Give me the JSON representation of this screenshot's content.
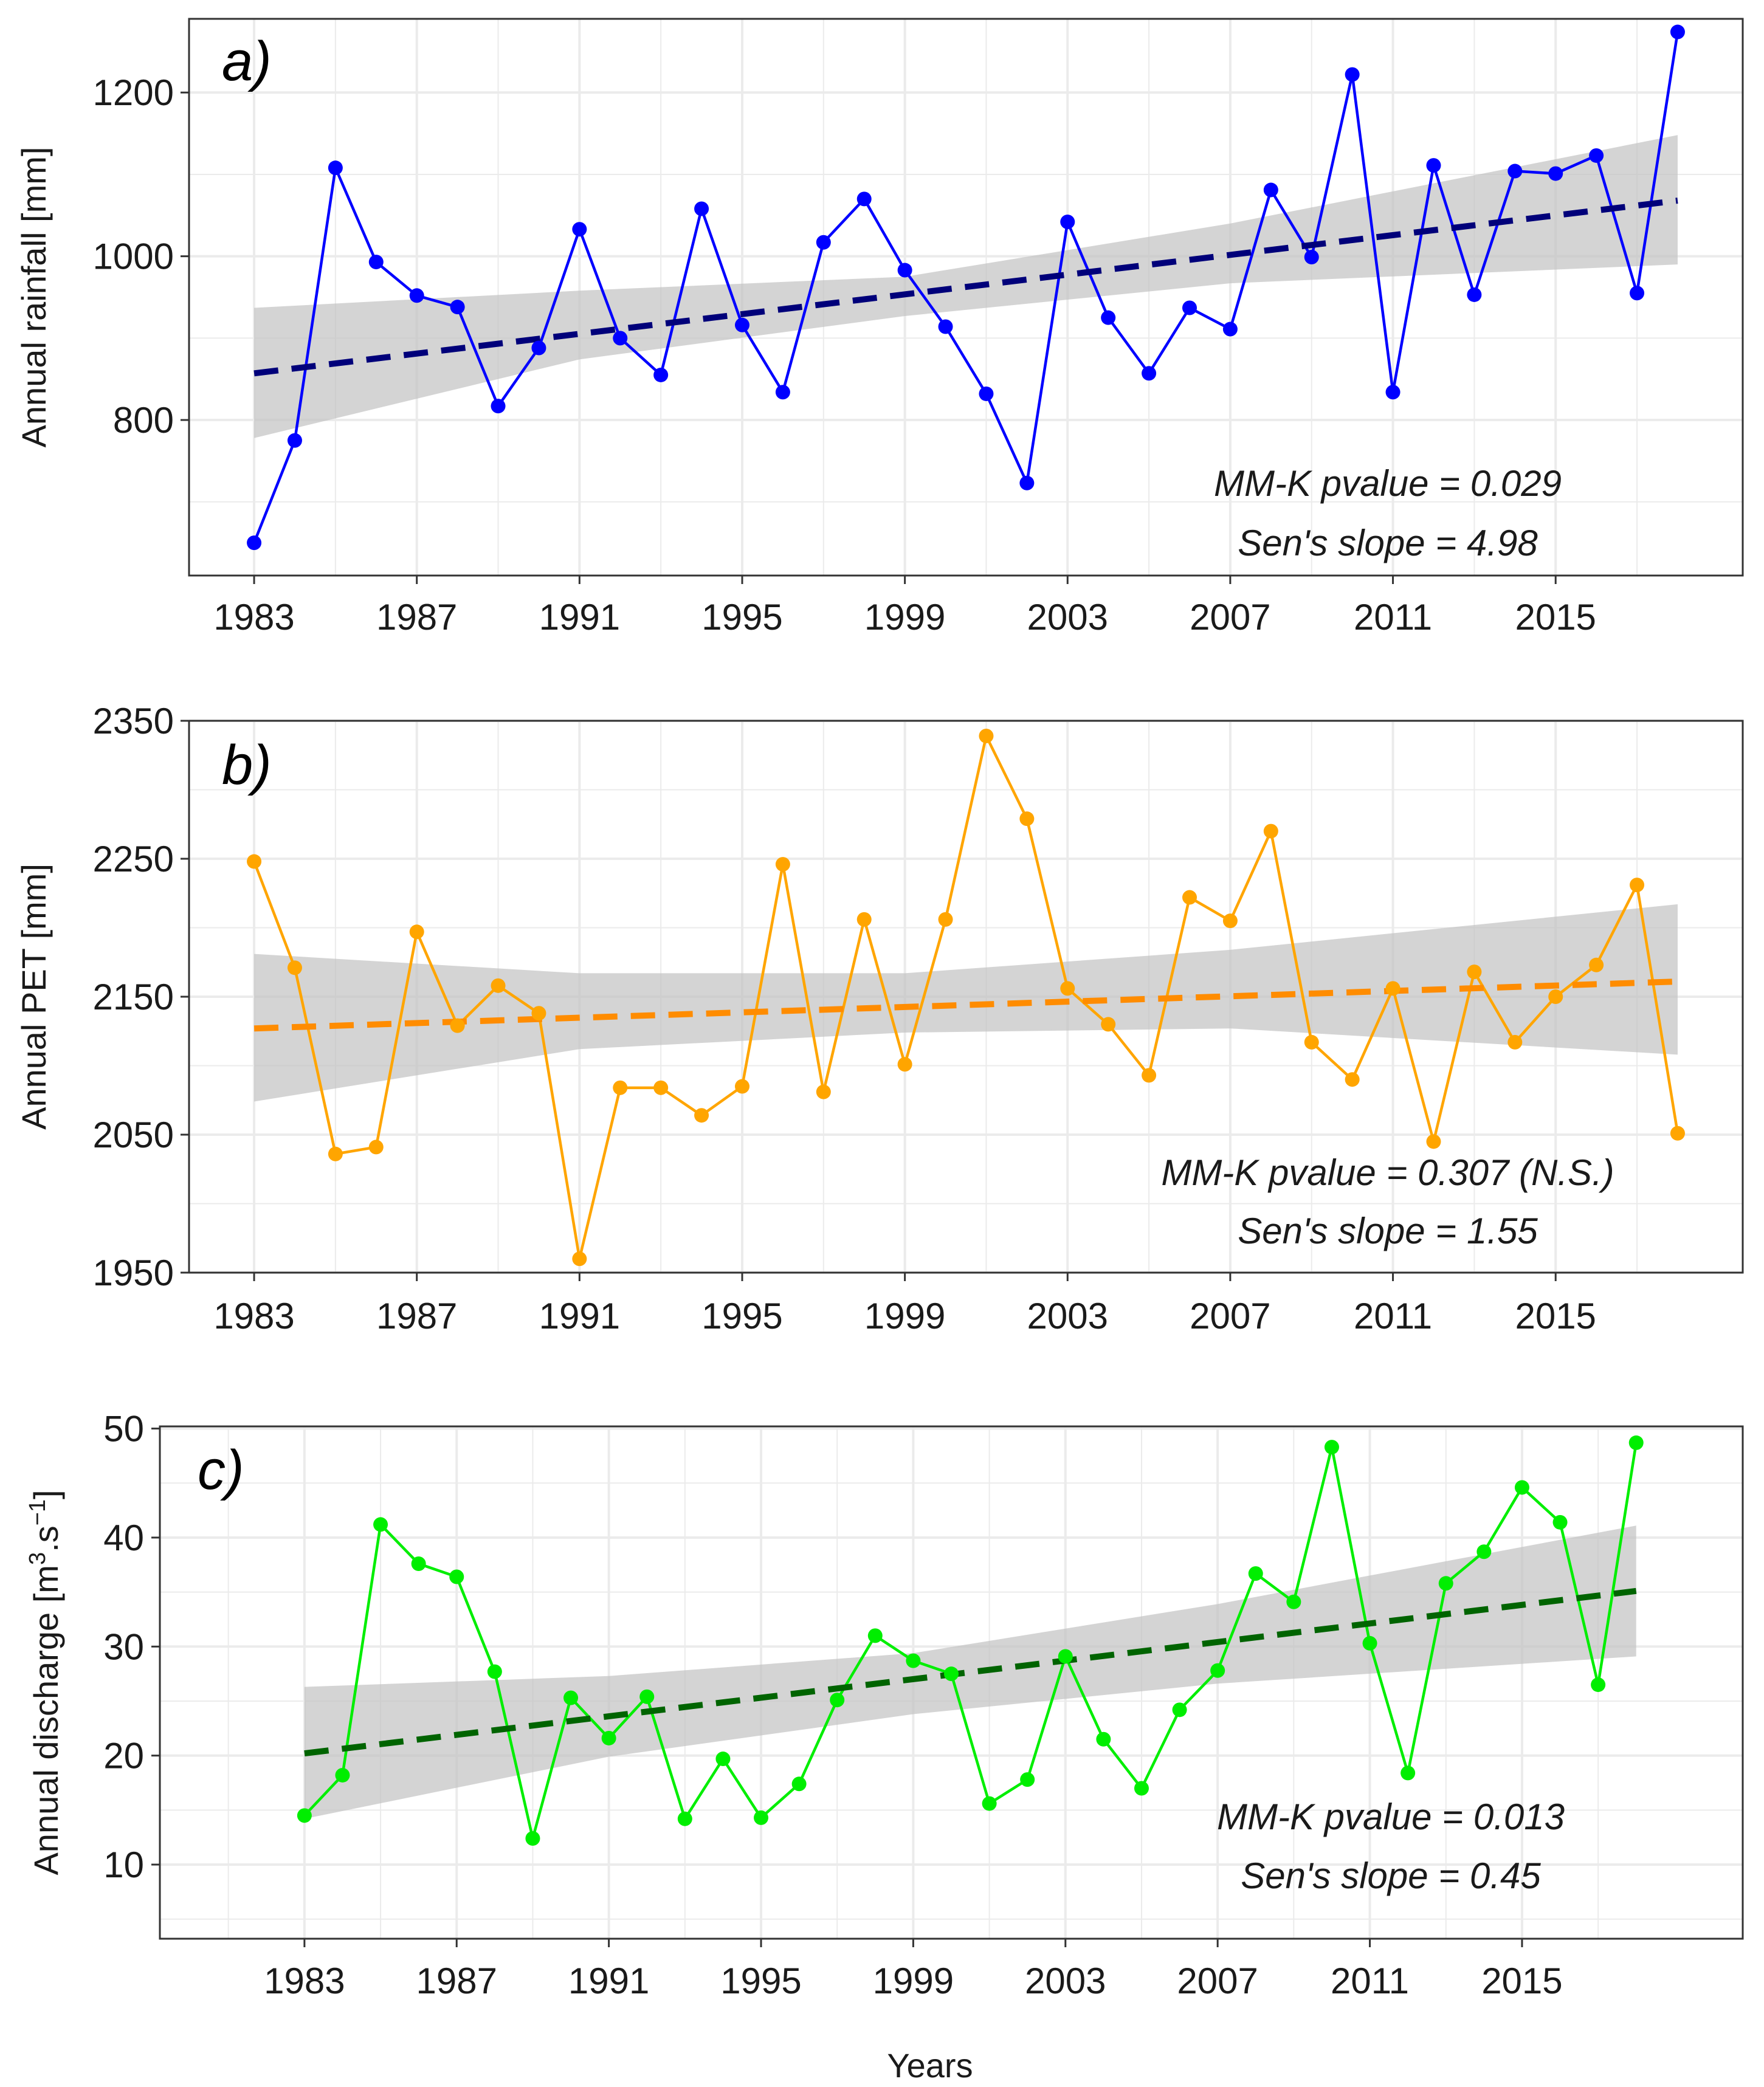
{
  "figure": {
    "xlabel": "Years"
  },
  "colors": {
    "grid": "#ebebeb",
    "ribbon": "#bfbfbf",
    "frame": "#333333"
  },
  "chart_data": [
    {
      "type": "line",
      "panel_label": "a)",
      "ylabel": "Annual rainfall [mm]",
      "ylabel_super": "",
      "ylabel_mid": "",
      "ylabel_super2": "",
      "ylabel_end": "",
      "ylim": [
        610,
        1290
      ],
      "yticks": [
        800,
        1000,
        1200
      ],
      "yticklabels": [
        "800",
        "1000",
        "1200"
      ],
      "xlim": [
        1981.4,
        2019.6
      ],
      "xticks": [
        1983,
        1987,
        1991,
        1995,
        1999,
        2003,
        2007,
        2011,
        2015
      ],
      "xticklabels": [
        "1983",
        "1987",
        "1991",
        "1995",
        "1999",
        "2003",
        "2007",
        "2011",
        "2015"
      ],
      "series": [
        {
          "name": "rainfall",
          "color": "#0000ff",
          "x": [
            1983,
            1984,
            1985,
            1986,
            1987,
            1988,
            1989,
            1990,
            1991,
            1992,
            1993,
            1994,
            1995,
            1996,
            1997,
            1998,
            1999,
            2000,
            2001,
            2002,
            2003,
            2004,
            2005,
            2006,
            2007,
            2008,
            2009,
            2010,
            2011,
            2012,
            2013,
            2014,
            2015,
            2016,
            2017,
            2018
          ],
          "values": [
            650,
            775,
            1108,
            993,
            952,
            938,
            817,
            888,
            1033,
            900,
            855,
            1058,
            916,
            834,
            1017,
            1070,
            983,
            914,
            832,
            723,
            1042,
            925,
            857,
            937,
            911,
            1081,
            999,
            1222,
            834,
            1111,
            953,
            1104,
            1101,
            1123,
            955,
            1274
          ]
        }
      ],
      "trend": {
        "color": "#00007a",
        "x": [
          1983,
          2018
        ],
        "y": [
          857,
          1068
        ]
      },
      "ribbon": {
        "x": [
          1983,
          1991,
          1999,
          2007,
          2018
        ],
        "lower": [
          778,
          874,
          927,
          967,
          990
        ],
        "upper": [
          937,
          958,
          975,
          1040,
          1148
        ]
      },
      "annotation": {
        "line1": "MM-K pvalue = 0.029",
        "line2": "Sen's slope = 4.98"
      }
    },
    {
      "type": "line",
      "panel_label": "b)",
      "ylabel": "Annual PET [mm]",
      "ylabel_super": "",
      "ylabel_mid": "",
      "ylabel_super2": "",
      "ylabel_end": "",
      "ylim": [
        1950,
        2350
      ],
      "yticks": [
        1950,
        2050,
        2150,
        2250,
        2350
      ],
      "yticklabels": [
        "1950",
        "2050",
        "2150",
        "2250",
        "2350"
      ],
      "xlim": [
        1981.4,
        2019.6
      ],
      "xticks": [
        1983,
        1987,
        1991,
        1995,
        1999,
        2003,
        2007,
        2011,
        2015
      ],
      "xticklabels": [
        "1983",
        "1987",
        "1991",
        "1995",
        "1999",
        "2003",
        "2007",
        "2011",
        "2015"
      ],
      "series": [
        {
          "name": "PET",
          "color": "#ffa500",
          "x": [
            1983,
            1984,
            1985,
            1986,
            1987,
            1988,
            1989,
            1990,
            1991,
            1992,
            1993,
            1994,
            1995,
            1996,
            1997,
            1998,
            1999,
            2000,
            2001,
            2002,
            2003,
            2004,
            2005,
            2006,
            2007,
            2008,
            2009,
            2010,
            2011,
            2012,
            2013,
            2014,
            2015,
            2016,
            2017,
            2018
          ],
          "values": [
            2248,
            2171,
            2036,
            2041,
            2197,
            2129,
            2158,
            2138,
            1960,
            2084,
            2084,
            2064,
            2085,
            2246,
            2081,
            2206,
            2101,
            2206,
            2339,
            2279,
            2156,
            2130,
            2093,
            2222,
            2205,
            2270,
            2117,
            2090,
            2156,
            2045,
            2168,
            2117,
            2150,
            2173,
            2231,
            2051
          ]
        }
      ],
      "trend": {
        "color": "#ff8c00",
        "x": [
          1983,
          2018
        ],
        "y": [
          2127,
          2161
        ]
      },
      "ribbon": {
        "x": [
          1983,
          1991,
          1999,
          2007,
          2018
        ],
        "lower": [
          2074,
          2112,
          2124,
          2127,
          2108
        ],
        "upper": [
          2181,
          2167,
          2167,
          2184,
          2217
        ]
      },
      "annotation": {
        "line1": "MM-K pvalue = 0.307 (N.S.)",
        "line2": "Sen's slope = 1.55"
      }
    },
    {
      "type": "line",
      "panel_label": "c)",
      "ylabel": "Annual discharge [m",
      "ylabel_super": "3",
      "ylabel_mid": ".s",
      "ylabel_super2": "−1",
      "ylabel_end": "]",
      "ylim": [
        3.2,
        50.2
      ],
      "yticks": [
        10,
        20,
        30,
        40,
        50
      ],
      "yticklabels": [
        "10",
        "20",
        "30",
        "40",
        "50"
      ],
      "xlim": [
        1979.2,
        2020.8
      ],
      "xticks": [
        1983,
        1987,
        1991,
        1995,
        1999,
        2003,
        2007,
        2011,
        2015
      ],
      "xticklabels": [
        "1983",
        "1987",
        "1991",
        "1995",
        "1999",
        "2003",
        "2007",
        "2011",
        "2015"
      ],
      "series": [
        {
          "name": "discharge",
          "color": "#00ee00",
          "x": [
            1983,
            1984,
            1985,
            1986,
            1987,
            1988,
            1989,
            1990,
            1991,
            1992,
            1993,
            1994,
            1995,
            1996,
            1997,
            1998,
            1999,
            2000,
            2001,
            2002,
            2003,
            2004,
            2005,
            2006,
            2007,
            2008,
            2009,
            2010,
            2011,
            2012,
            2013,
            2014,
            2015,
            2016,
            2017,
            2018
          ],
          "values": [
            14.5,
            18.2,
            41.2,
            37.6,
            36.4,
            27.7,
            12.4,
            25.3,
            21.6,
            25.4,
            14.2,
            19.7,
            14.3,
            17.4,
            25.1,
            31.0,
            28.7,
            27.5,
            15.6,
            17.8,
            29.1,
            21.5,
            17.0,
            24.2,
            27.8,
            36.7,
            34.1,
            48.3,
            30.3,
            18.4,
            35.8,
            38.7,
            44.6,
            41.4,
            26.5,
            48.7
          ]
        }
      ],
      "trend": {
        "color": "#006400",
        "x": [
          1983,
          2018
        ],
        "y": [
          20.2,
          35.1
        ]
      },
      "ribbon": {
        "x": [
          1983,
          1991,
          1999,
          2007,
          2018
        ],
        "lower": [
          14.2,
          19.9,
          23.8,
          26.6,
          29.1
        ],
        "upper": [
          26.3,
          27.3,
          29.4,
          33.9,
          41.1
        ]
      },
      "annotation": {
        "line1": "MM-K pvalue = 0.013",
        "line2": "Sen's slope = 0.45"
      }
    }
  ]
}
